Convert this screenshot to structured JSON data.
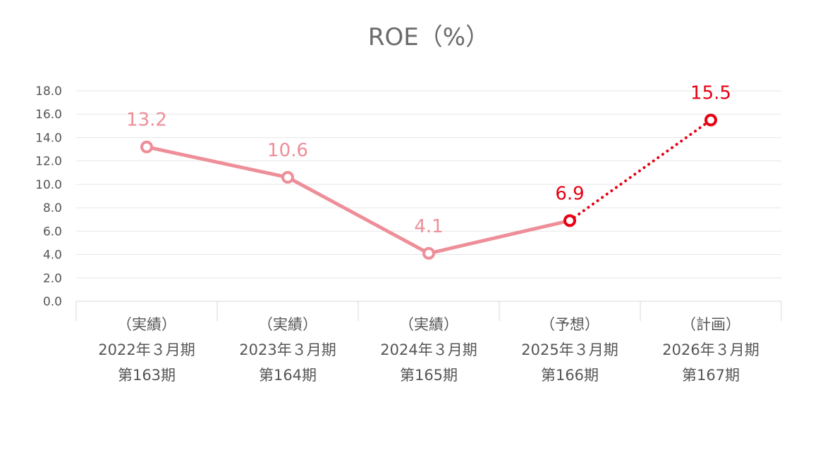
{
  "chart_data": {
    "type": "line",
    "title": "ROE（%）",
    "xlabel": "",
    "ylabel": "",
    "ylim": [
      0,
      18
    ],
    "yticks": [
      "0.0",
      "2.0",
      "4.0",
      "6.0",
      "8.0",
      "10.0",
      "12.0",
      "14.0",
      "16.0",
      "18.0"
    ],
    "grid": true,
    "categories": [
      [
        "（実績）",
        "2022年３月期",
        "第163期"
      ],
      [
        "（実績）",
        "2023年３月期",
        "第164期"
      ],
      [
        "（実績）",
        "2024年３月期",
        "第165期"
      ],
      [
        "（予想）",
        "2025年３月期",
        "第166期"
      ],
      [
        "（計画）",
        "2026年３月期",
        "第167期"
      ]
    ],
    "values": [
      13.2,
      10.6,
      4.1,
      6.9,
      15.5
    ],
    "data_labels": [
      "13.2",
      "10.6",
      "4.1",
      "6.9",
      "15.5"
    ],
    "segment_styles": [
      "solid",
      "solid",
      "solid",
      "dotted"
    ],
    "colors": {
      "actual": "#ee8e98",
      "forecast": "#e60012"
    },
    "point_colors": [
      "#ee8e98",
      "#ee8e98",
      "#ee8e98",
      "#e60012",
      "#e60012"
    ]
  }
}
